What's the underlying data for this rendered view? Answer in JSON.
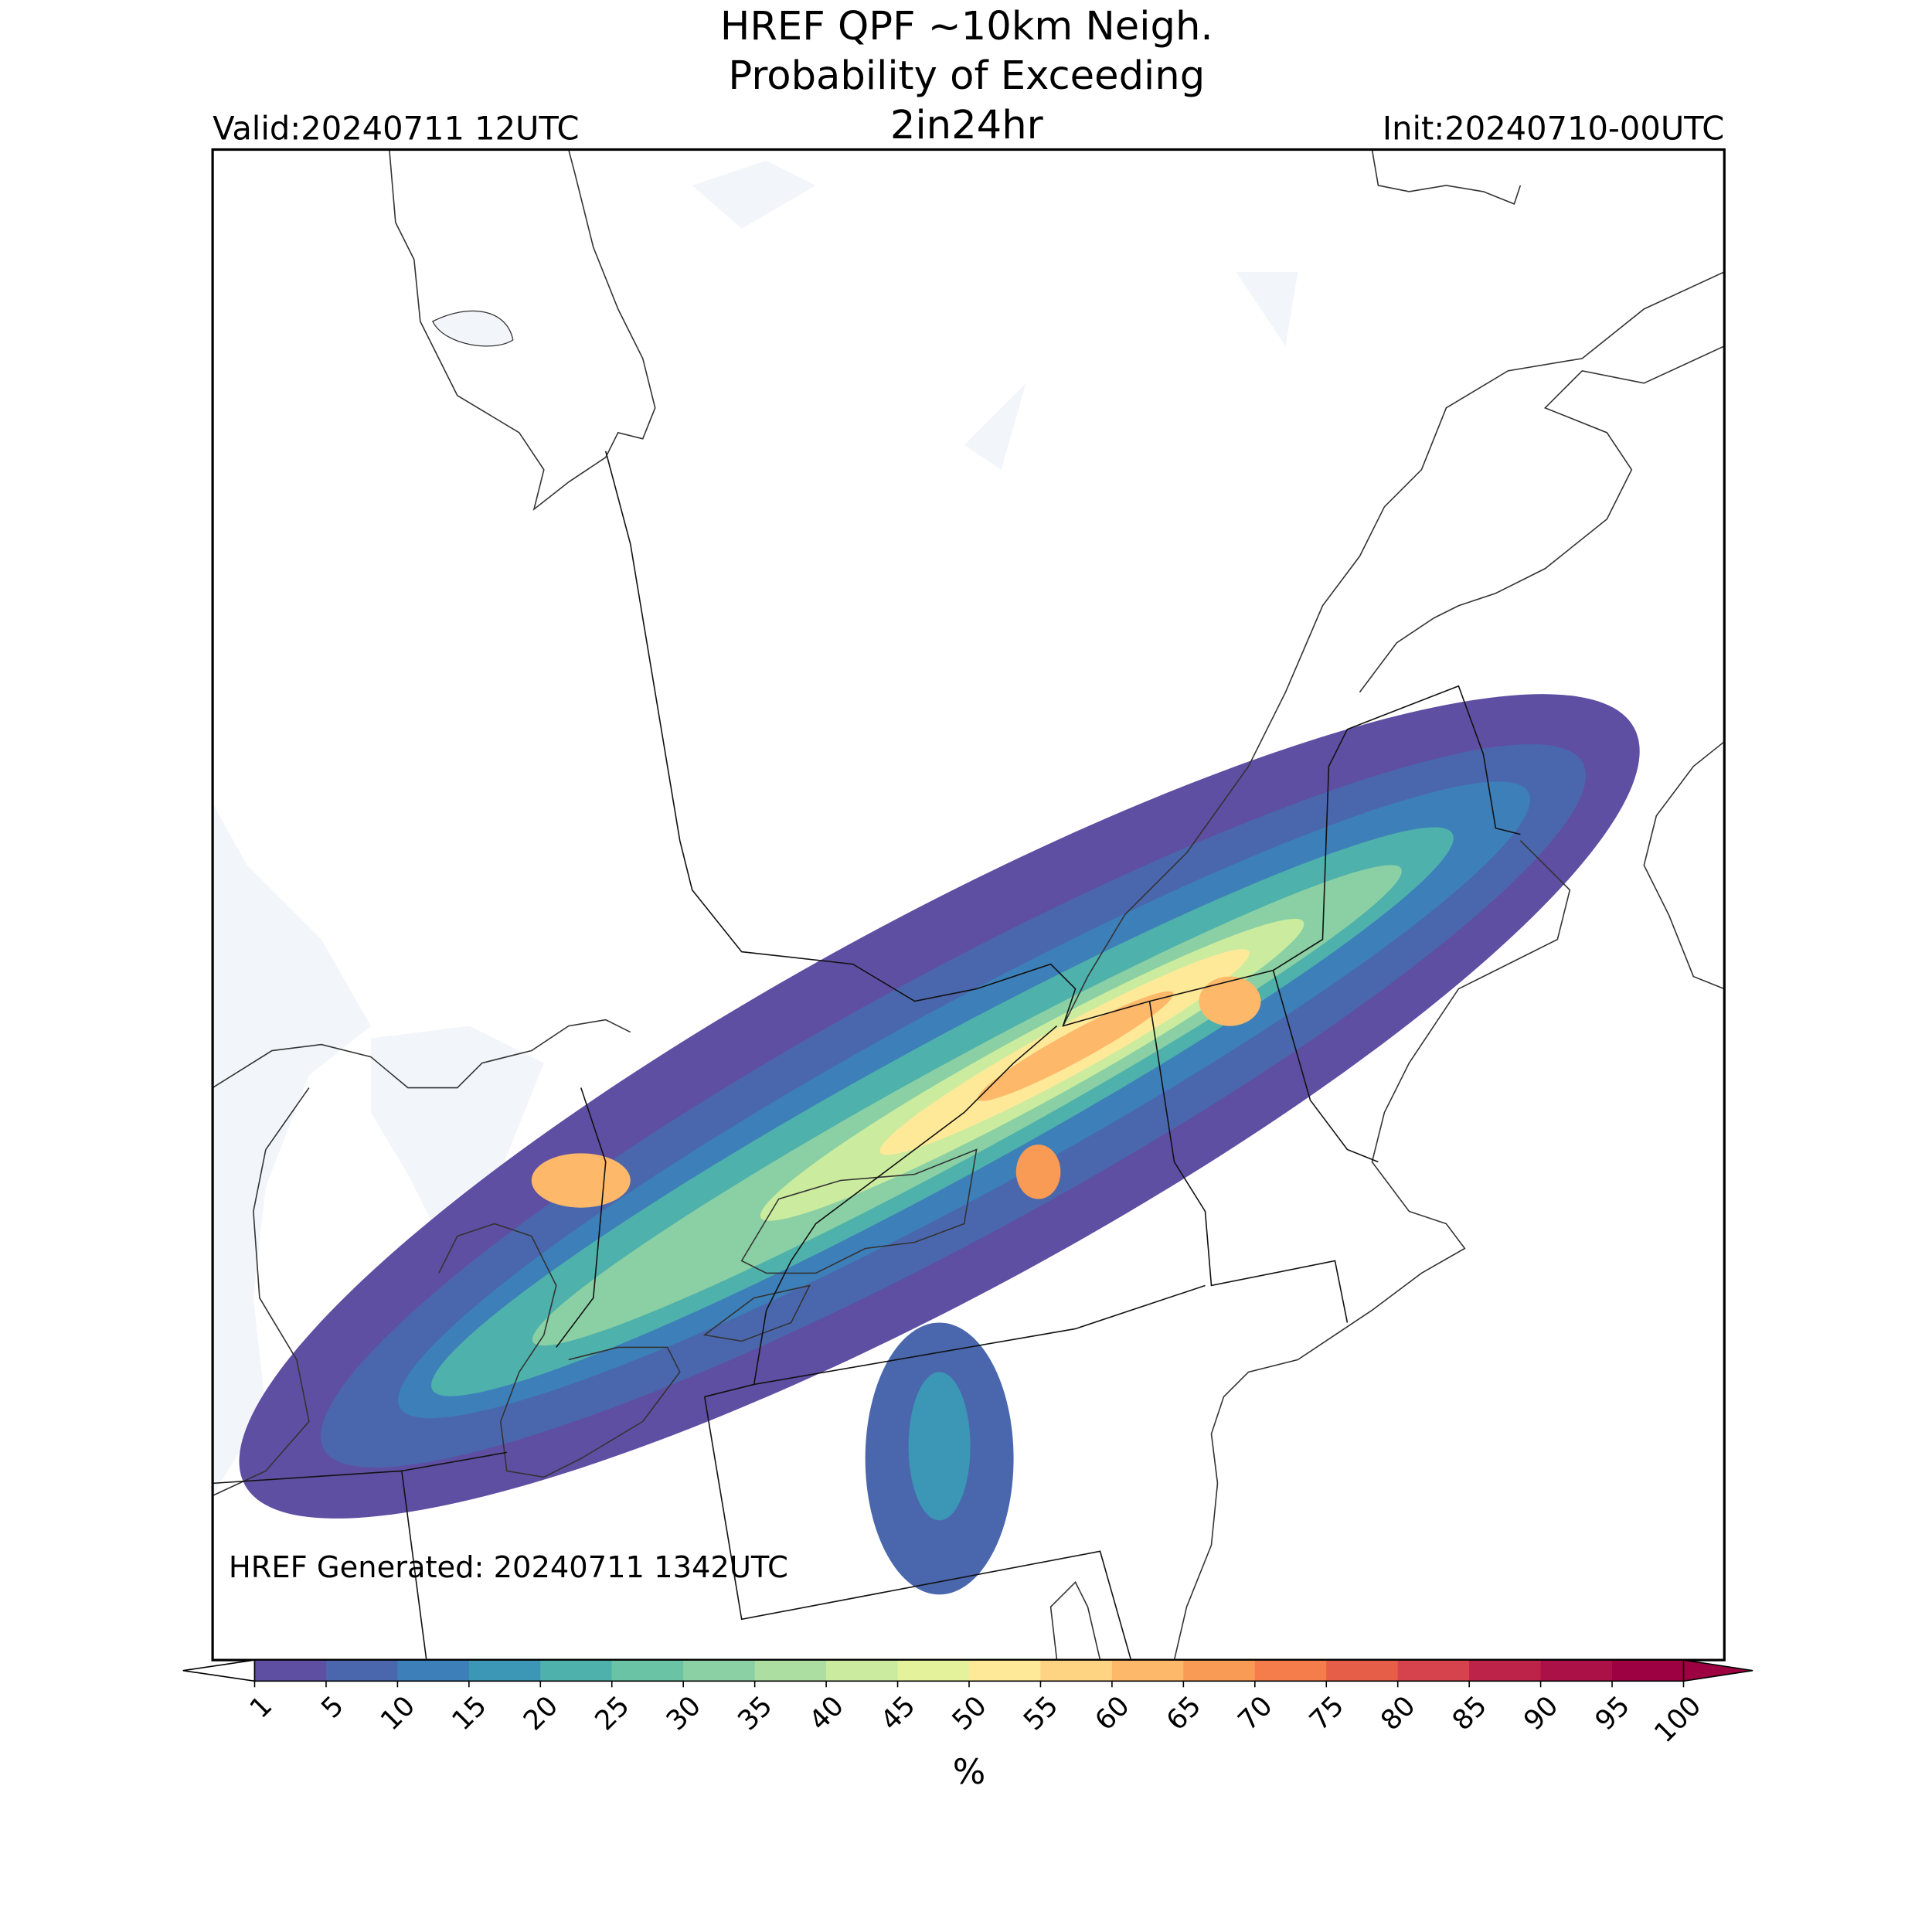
{
  "header": {
    "title_lines": [
      "HREF QPF ~10km Neigh.",
      "Probability of Exceeding",
      "2in24hr"
    ],
    "valid": "Valid:20240711 12UTC",
    "init": "Init:20240710-00UTC"
  },
  "map": {
    "generated": "HREF Generated: 20240711 1342UTC"
  },
  "colorbar": {
    "label": "%",
    "levels": [
      1,
      5,
      10,
      15,
      20,
      25,
      30,
      35,
      40,
      45,
      50,
      55,
      60,
      65,
      70,
      75,
      80,
      85,
      90,
      95,
      100
    ],
    "colors": [
      "#5e4fa2",
      "#4a67ad",
      "#3d7fb9",
      "#3b97b5",
      "#4fb1ab",
      "#69c3a4",
      "#8ad0a4",
      "#acdea2",
      "#cbeb9e",
      "#e4f39b",
      "#fee999",
      "#fed382",
      "#fdb869",
      "#f99b55",
      "#f47d4b",
      "#e65d48",
      "#d6434d",
      "#bd2249",
      "#ab1146",
      "#9e0142"
    ],
    "under_color": "#ffffff",
    "over_color": "#9e0142"
  }
}
